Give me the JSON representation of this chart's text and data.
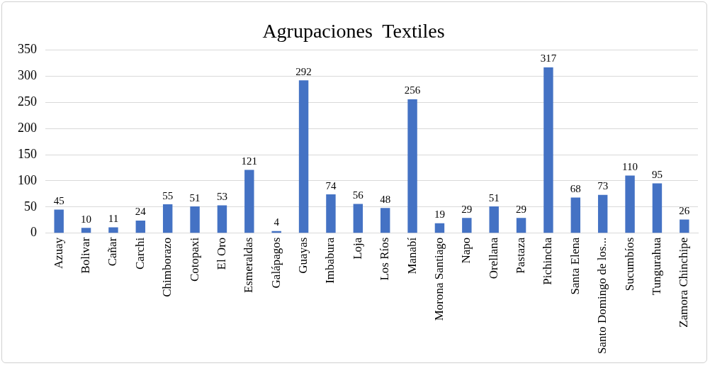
{
  "chart_data": {
    "type": "bar",
    "title": "Agrupaciones  Textiles",
    "categories": [
      "Azuay",
      "Bolivar",
      "Cañar",
      "Carchi",
      "Chimborazo",
      "Cotopaxi",
      "El Oro",
      "Esmeraldas",
      "Galápagos",
      "Guayas",
      "Imbabura",
      "Loja",
      "Los Ríos",
      "Manabí",
      "Morona Santiago",
      "Napo",
      "Orellana",
      "Pastaza",
      "Pichincha",
      "Santa Elena",
      "Santo Domingo de los...",
      "Sucumbíos",
      "Tungurahua",
      "Zamora Chinchipe"
    ],
    "values": [
      45,
      10,
      11,
      24,
      55,
      51,
      53,
      121,
      4,
      292,
      74,
      56,
      48,
      256,
      19,
      29,
      51,
      29,
      317,
      68,
      73,
      110,
      95,
      26
    ],
    "color": "#4472c4",
    "ylim": [
      0,
      350
    ],
    "yticks": [
      0,
      50,
      100,
      150,
      200,
      250,
      300,
      350
    ],
    "grid": "y",
    "legend": false,
    "data_labels": true
  }
}
